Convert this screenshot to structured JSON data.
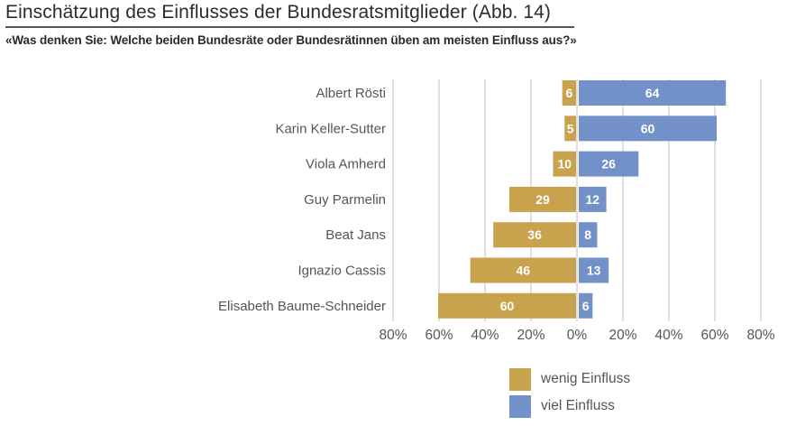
{
  "header": {
    "title": "Einschätzung des Einflusses der Bundesratsmitglieder  (Abb. 14)",
    "subtitle": "«Was denken Sie: Welche beiden Bundesräte oder Bundesrätinnen üben am meisten Einfluss aus?»"
  },
  "colors": {
    "wenig": "#c8a24c",
    "viel": "#7191c8",
    "grid": "#d0d0d0"
  },
  "chart_data": {
    "type": "bar",
    "orientation": "horizontal-diverging",
    "title": "Einschätzung des Einflusses der Bundesratsmitglieder (Abb. 14)",
    "subtitle": "«Was denken Sie: Welche beiden Bundesräte oder Bundesrätinnen üben am meisten Einfluss aus?»",
    "xlabel": "",
    "ylabel": "",
    "xlim": [
      -80,
      80
    ],
    "x_ticks": [
      -80,
      -60,
      -40,
      -20,
      0,
      20,
      40,
      60,
      80
    ],
    "x_tick_labels": [
      "80%",
      "60%",
      "40%",
      "20%",
      "0%",
      "20%",
      "40%",
      "60%",
      "80%"
    ],
    "grid": true,
    "legend_position": "bottom-right",
    "categories": [
      "Albert Rösti",
      "Karin Keller-Sutter",
      "Viola Amherd",
      "Guy Parmelin",
      "Beat Jans",
      "Ignazio Cassis",
      "Elisabeth Baume-Schneider"
    ],
    "series": [
      {
        "name": "wenig Einfluss",
        "direction": "left",
        "values": [
          6,
          5,
          10,
          29,
          36,
          46,
          60
        ]
      },
      {
        "name": "viel Einfluss",
        "direction": "right",
        "values": [
          64,
          60,
          26,
          12,
          8,
          13,
          6
        ]
      }
    ]
  },
  "legend": {
    "items": [
      {
        "label": "wenig Einfluss",
        "key": "wenig"
      },
      {
        "label": "viel Einfluss",
        "key": "viel"
      }
    ]
  }
}
